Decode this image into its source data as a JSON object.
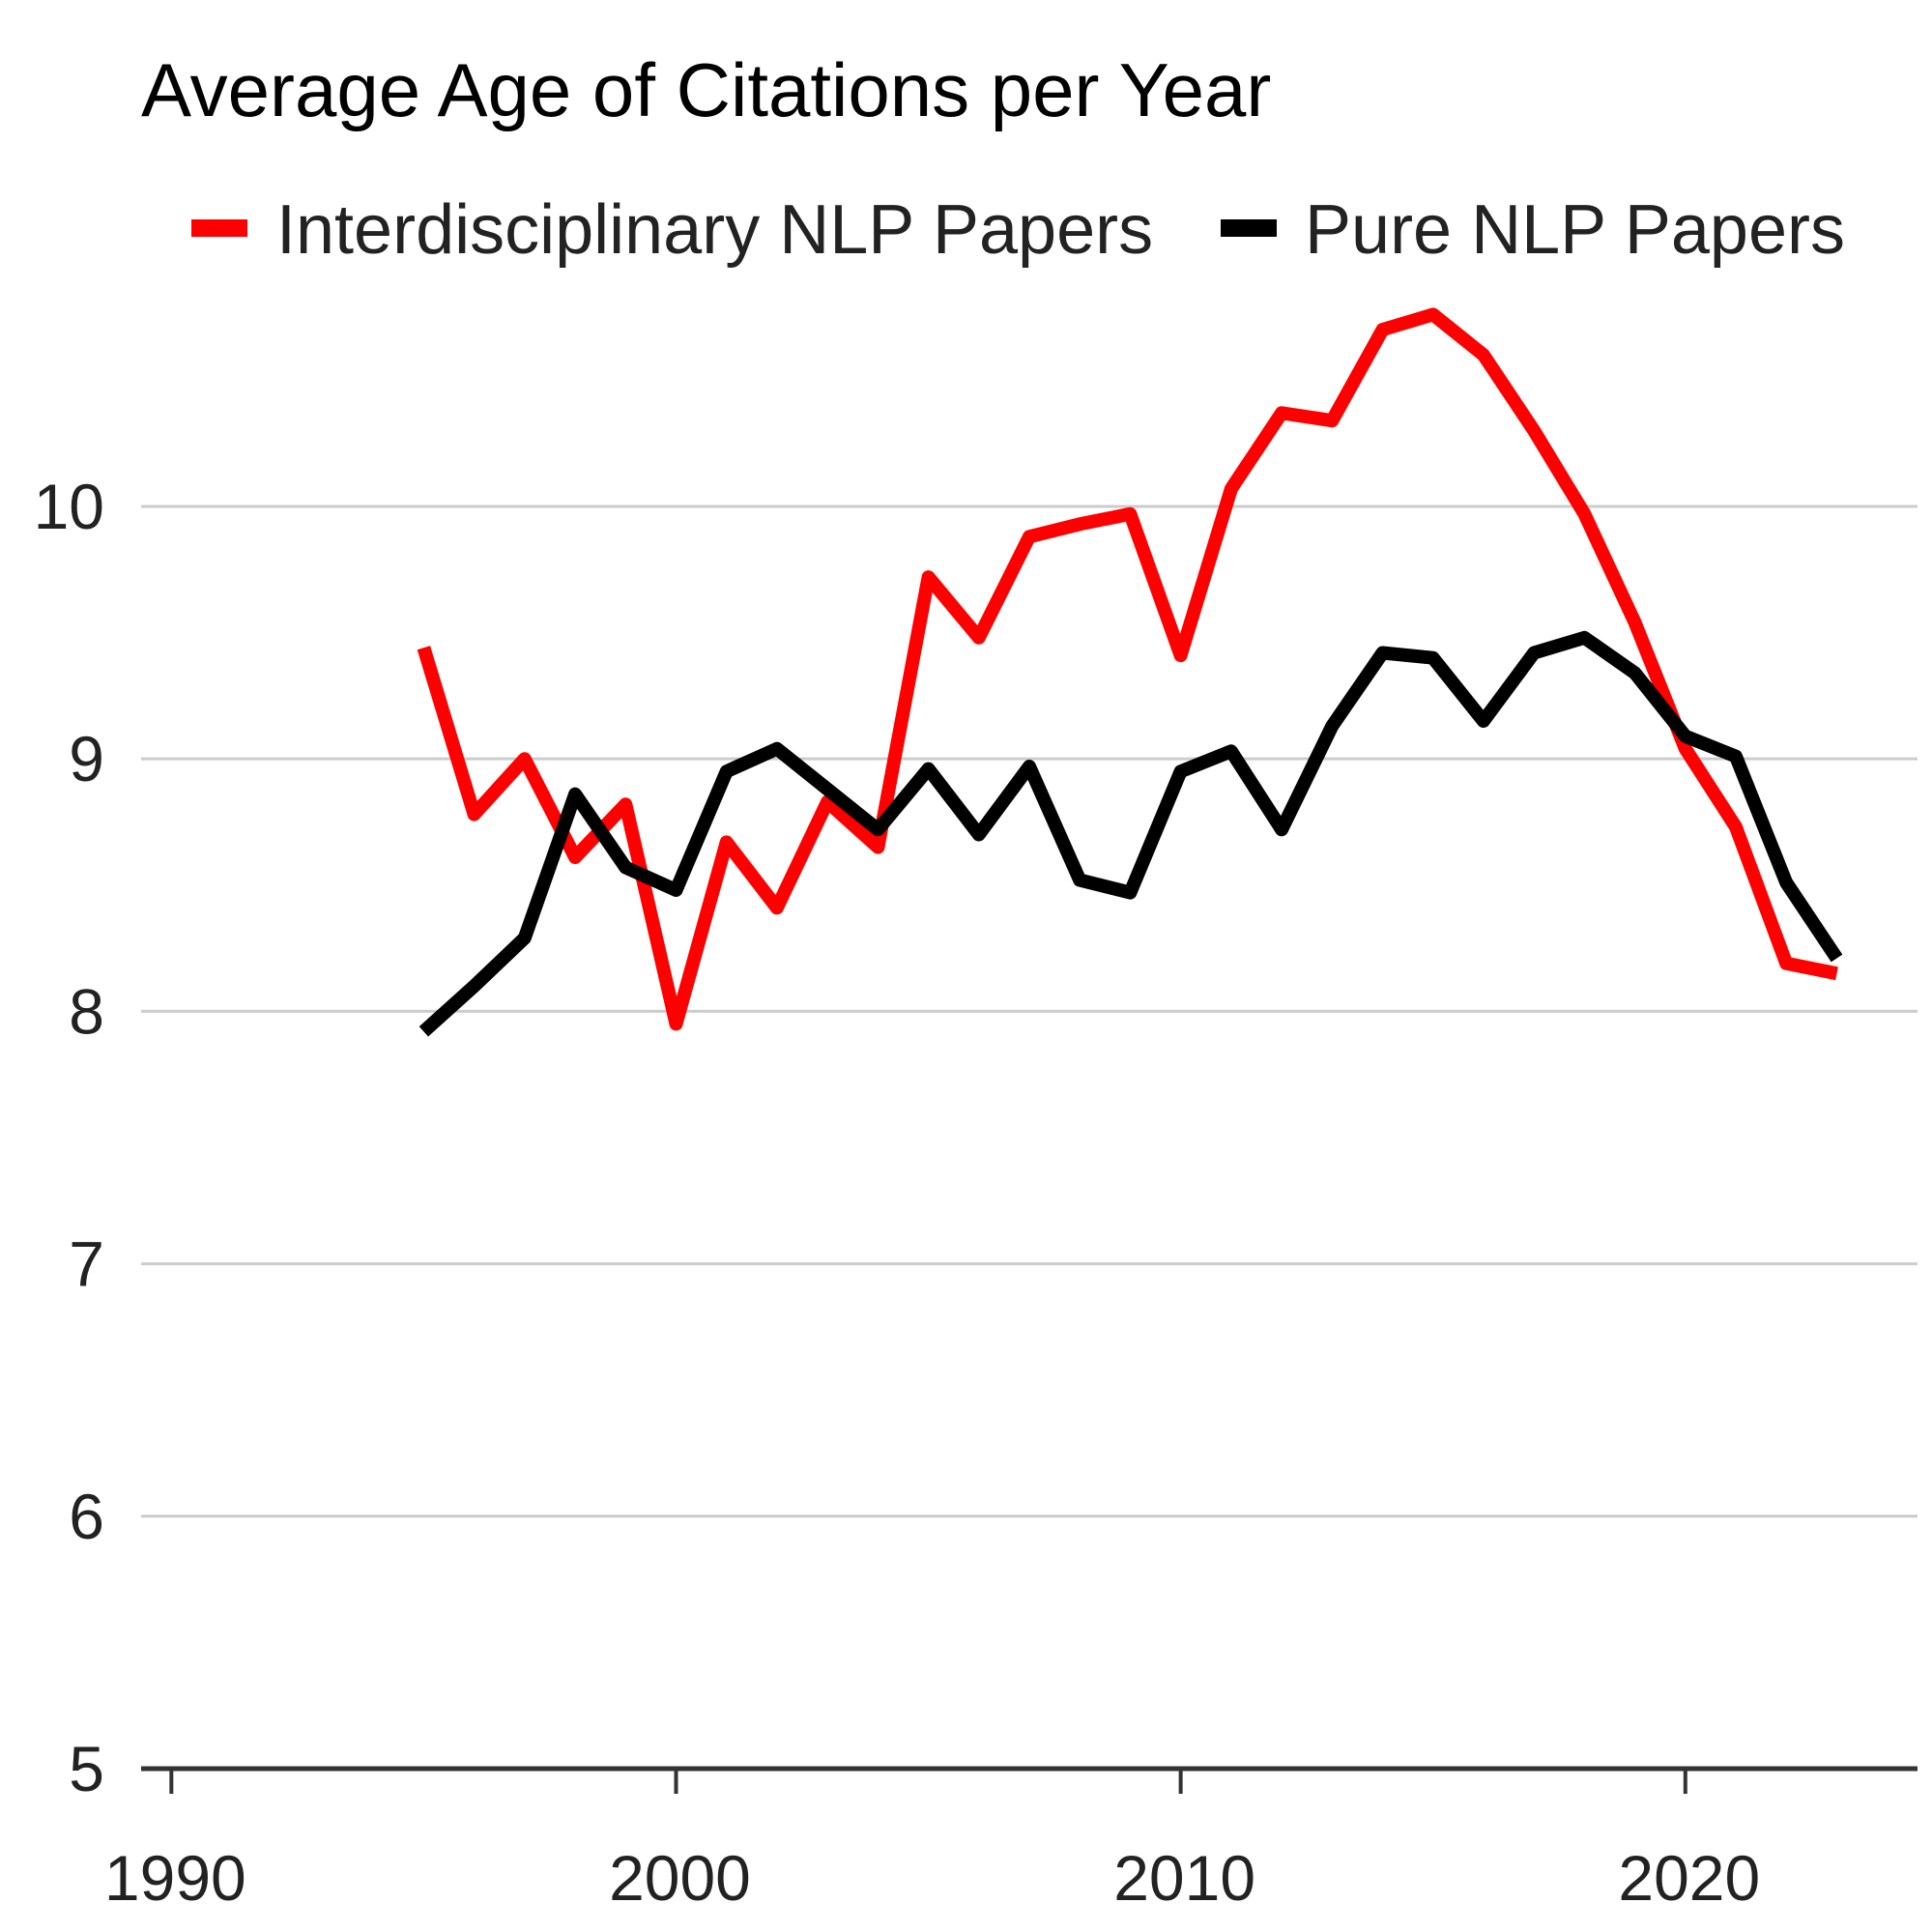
{
  "chart_data": {
    "type": "line",
    "title": "Average Age of Citations per Year",
    "xlabel": "",
    "ylabel": "",
    "xlim": [
      1989.4,
      2024.6
    ],
    "ylim": [
      5,
      10.8
    ],
    "x_ticks": [
      1990,
      2000,
      2010,
      2020
    ],
    "y_ticks": [
      5,
      6,
      7,
      8,
      9,
      10
    ],
    "grid": "horizontal",
    "legend_position": "top",
    "series": [
      {
        "name": "Interdisciplinary NLP Papers",
        "color": "#ff0000",
        "x": [
          1995,
          1996,
          1997,
          1998,
          1999,
          2000,
          2001,
          2002,
          2003,
          2004,
          2005,
          2006,
          2007,
          2008,
          2009,
          2010,
          2011,
          2012,
          2013,
          2014,
          2015,
          2016,
          2017,
          2018,
          2019,
          2020,
          2021,
          2022,
          2023
        ],
        "y": [
          9.44,
          8.78,
          9.0,
          8.61,
          8.82,
          7.95,
          8.67,
          8.41,
          8.83,
          8.65,
          9.72,
          9.48,
          9.88,
          9.93,
          9.97,
          9.41,
          10.07,
          10.37,
          10.34,
          10.7,
          10.76,
          10.6,
          10.3,
          9.97,
          9.54,
          9.04,
          8.73,
          8.19,
          8.15
        ]
      },
      {
        "name": "Pure NLP Papers",
        "color": "#000000",
        "x": [
          1995,
          1996,
          1997,
          1998,
          1999,
          2000,
          2001,
          2002,
          2003,
          2004,
          2005,
          2006,
          2007,
          2008,
          2009,
          2010,
          2011,
          2012,
          2013,
          2014,
          2015,
          2016,
          2017,
          2018,
          2019,
          2020,
          2021,
          2022,
          2023
        ],
        "y": [
          7.92,
          8.1,
          8.29,
          8.86,
          8.57,
          8.48,
          8.95,
          9.04,
          8.88,
          8.72,
          8.96,
          8.7,
          8.97,
          8.52,
          8.47,
          8.95,
          9.03,
          8.72,
          9.13,
          9.42,
          9.4,
          9.15,
          9.42,
          9.48,
          9.34,
          9.09,
          9.01,
          8.51,
          8.21
        ]
      }
    ]
  }
}
